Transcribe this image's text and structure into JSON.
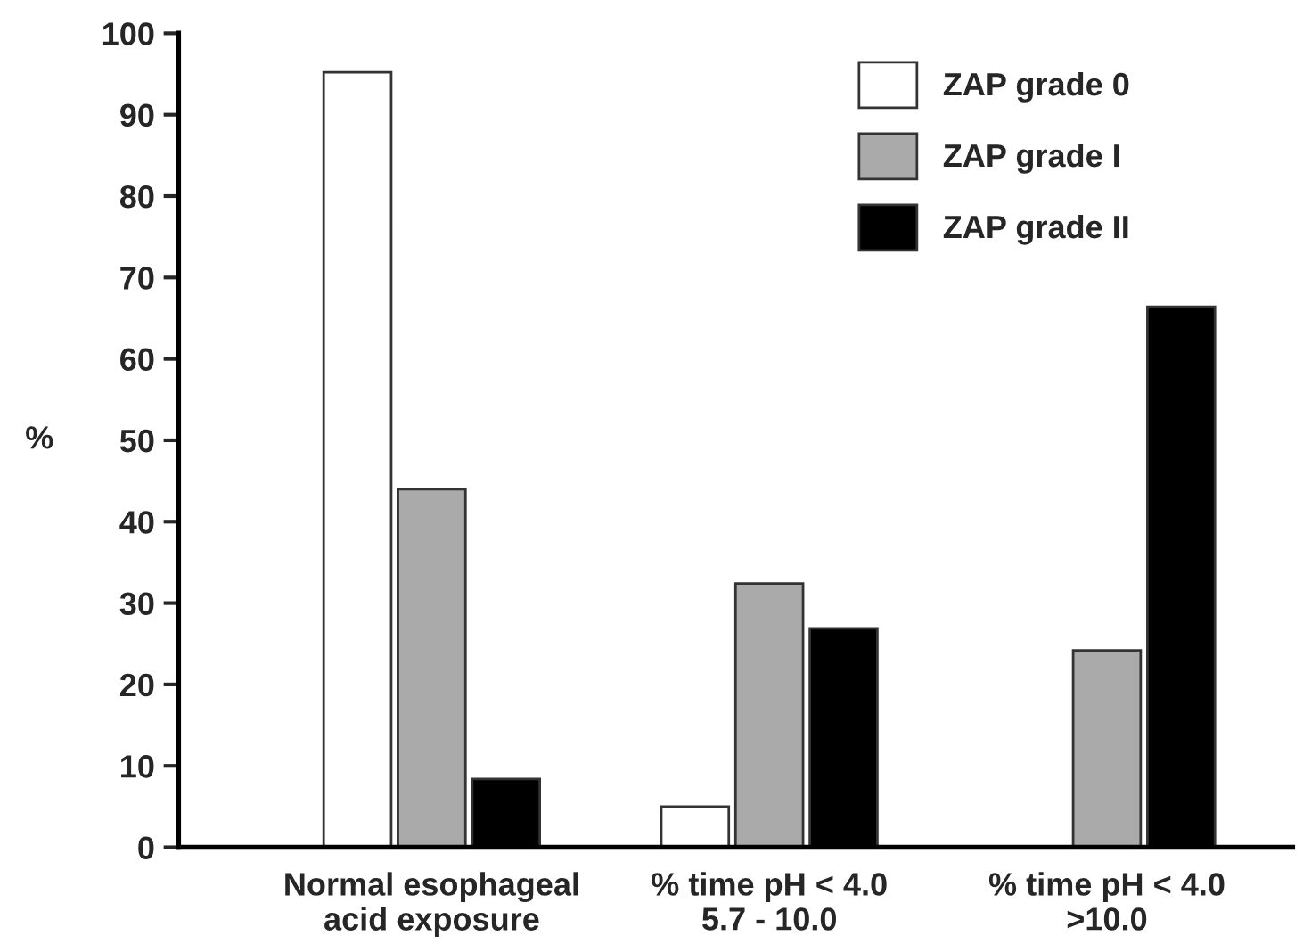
{
  "chart_data": {
    "type": "bar",
    "ylabel": "%",
    "categories": [
      "Normal esophageal\nacid exposure",
      "% time pH < 4.0\n5.7 - 10.0",
      "% time pH < 4.0\n>10.0"
    ],
    "series": [
      {
        "name": "ZAP grade 0",
        "color": "#ffffff",
        "values": [
          95.2,
          5.0,
          null
        ]
      },
      {
        "name": "ZAP grade I",
        "color": "#aaaaaa",
        "values": [
          44.0,
          32.4,
          24.2
        ]
      },
      {
        "name": "ZAP grade II",
        "color": "#000000",
        "values": [
          8.4,
          26.9,
          66.4
        ]
      }
    ],
    "ylim": [
      0,
      100
    ],
    "yticks": [
      0,
      10,
      20,
      30,
      40,
      50,
      60,
      70,
      80,
      90,
      100
    ],
    "legend": "top right",
    "grid": false
  }
}
